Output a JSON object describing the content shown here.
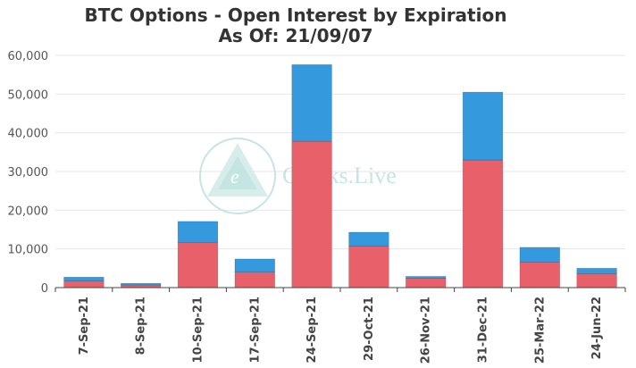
{
  "chart_data": {
    "type": "bar",
    "stacked": true,
    "title": "BTC Options - Open Interest by Expiration",
    "subtitle": "As Of: 21/09/07",
    "xlabel": "",
    "ylabel": "",
    "ylim": [
      0,
      60000
    ],
    "yticks": [
      0,
      10000,
      20000,
      30000,
      40000,
      50000,
      60000
    ],
    "ytick_labels": [
      "0",
      "10,000",
      "20,000",
      "30,000",
      "40,000",
      "50,000",
      "60,000"
    ],
    "grid": true,
    "legend": "none",
    "categories": [
      "7-Sep-21",
      "8-Sep-21",
      "10-Sep-21",
      "17-Sep-21",
      "24-Sep-21",
      "29-Oct-21",
      "26-Nov-21",
      "31-Dec-21",
      "25-Mar-22",
      "24-Jun-22"
    ],
    "series": [
      {
        "color": "#e8606a",
        "values": [
          1700,
          700,
          11700,
          4000,
          37800,
          10700,
          2400,
          33000,
          6600,
          3600
        ]
      },
      {
        "color": "#3499dd",
        "values": [
          1000,
          400,
          5400,
          3400,
          19800,
          3600,
          500,
          17500,
          3800,
          1400
        ]
      }
    ]
  },
  "watermark": {
    "text": "Greeks.Live",
    "icon": "greeks-live-logo-icon",
    "color": "#bfe3df"
  }
}
